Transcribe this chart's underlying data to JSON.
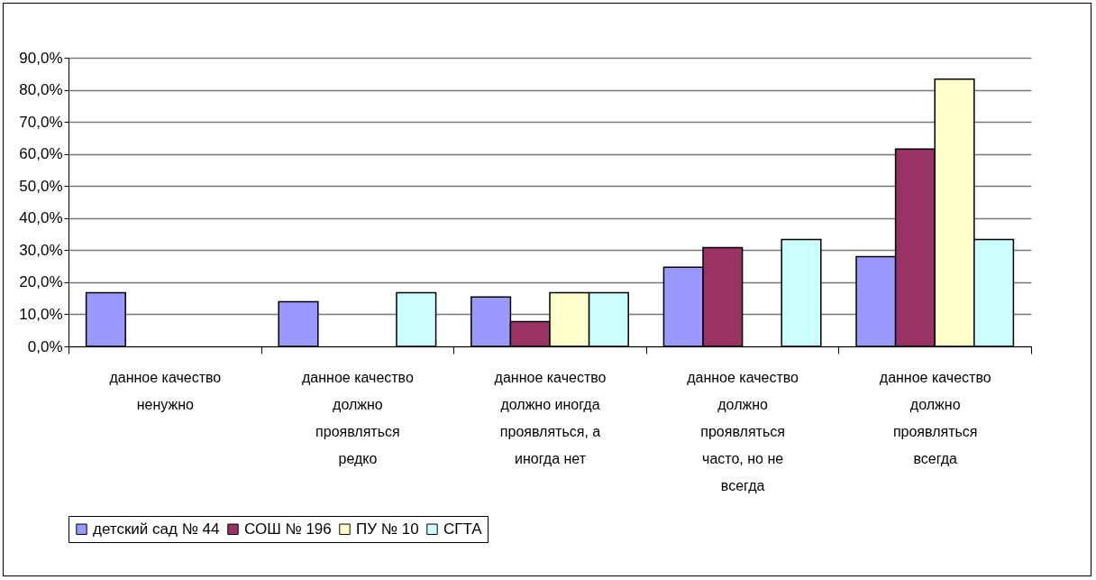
{
  "chart_data": {
    "type": "bar",
    "categories": [
      "данное качество ненужно",
      "данное качество должно проявляться редко",
      "данное качество должно иногда проявляться, а иногда нет",
      "данное качество должно проявляться часто, но не всегда",
      "данное качество должно проявляться всегда"
    ],
    "series": [
      {
        "name": "детский сад № 44",
        "color": "#9999ff",
        "values": [
          16.7,
          13.9,
          15.4,
          24.7,
          28.0
        ]
      },
      {
        "name": "СОШ № 196",
        "color": "#993366",
        "values": [
          null,
          null,
          7.7,
          30.8,
          61.5
        ]
      },
      {
        "name": "ПУ № 10",
        "color": "#ffffcc",
        "values": [
          null,
          null,
          16.7,
          null,
          83.3
        ]
      },
      {
        "name": "СГТА",
        "color": "#ccffff",
        "values": [
          null,
          16.7,
          16.7,
          33.3,
          33.3
        ]
      }
    ],
    "ylim": [
      0,
      90
    ],
    "yticks": [
      {
        "value": 0,
        "label": "0,0%"
      },
      {
        "value": 10,
        "label": "10,0%"
      },
      {
        "value": 20,
        "label": "20,0%"
      },
      {
        "value": 30,
        "label": "30,0%"
      },
      {
        "value": 40,
        "label": "40,0%"
      },
      {
        "value": 50,
        "label": "50,0%"
      },
      {
        "value": 60,
        "label": "60,0%"
      },
      {
        "value": 70,
        "label": "70,0%"
      },
      {
        "value": 80,
        "label": "80,0%"
      },
      {
        "value": 90,
        "label": "90,0%"
      }
    ],
    "grid": "y",
    "legend": "bottom"
  }
}
